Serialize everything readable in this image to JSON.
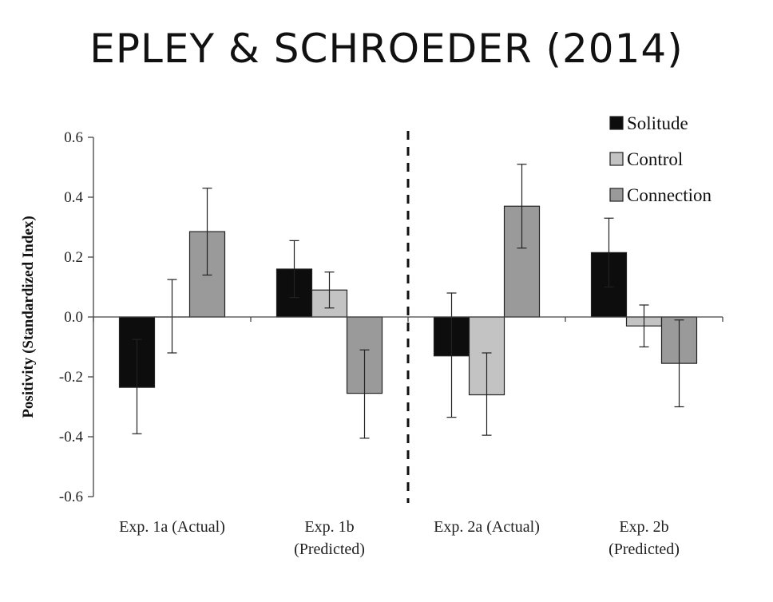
{
  "slide": {
    "title": "EPLEY & SCHROEDER (2014)"
  },
  "colors": {
    "Solitude": "#0d0d0d",
    "Control": "#c3c3c3",
    "Connection": "#9a9a9a"
  },
  "chart_data": {
    "type": "bar",
    "title": "",
    "ylabel": "Positivity (Standardized Index)",
    "xlabel": "",
    "ylim": [
      -0.6,
      0.6
    ],
    "yticks": [
      "0.6",
      "0.4",
      "0.2",
      "0.0",
      "-0.2",
      "-0.4",
      "-0.6"
    ],
    "yticks_values": [
      0.6,
      0.4,
      0.2,
      0.0,
      -0.2,
      -0.4,
      -0.6
    ],
    "categories": [
      [
        "Exp. 1a (Actual)"
      ],
      [
        "Exp. 1b",
        "(Predicted)"
      ],
      [
        "Exp. 2a (Actual)"
      ],
      [
        "Exp. 2b",
        "(Predicted)"
      ]
    ],
    "legend_position": "top-right",
    "divider_after_category": 1,
    "series": [
      {
        "name": "Solitude",
        "values": [
          -0.235,
          0.16,
          -0.13,
          0.215
        ],
        "error_low": [
          -0.39,
          0.065,
          -0.335,
          0.1
        ],
        "error_high": [
          -0.075,
          0.255,
          0.08,
          0.33
        ]
      },
      {
        "name": "Control",
        "values": [
          0.0,
          0.09,
          -0.26,
          -0.03
        ],
        "error_low": [
          -0.12,
          0.03,
          -0.395,
          -0.1
        ],
        "error_high": [
          0.125,
          0.15,
          -0.12,
          0.04
        ]
      },
      {
        "name": "Connection",
        "values": [
          0.285,
          -0.255,
          0.37,
          -0.155
        ],
        "error_low": [
          0.14,
          -0.405,
          0.23,
          -0.3
        ],
        "error_high": [
          0.43,
          -0.11,
          0.51,
          -0.01
        ]
      }
    ]
  }
}
